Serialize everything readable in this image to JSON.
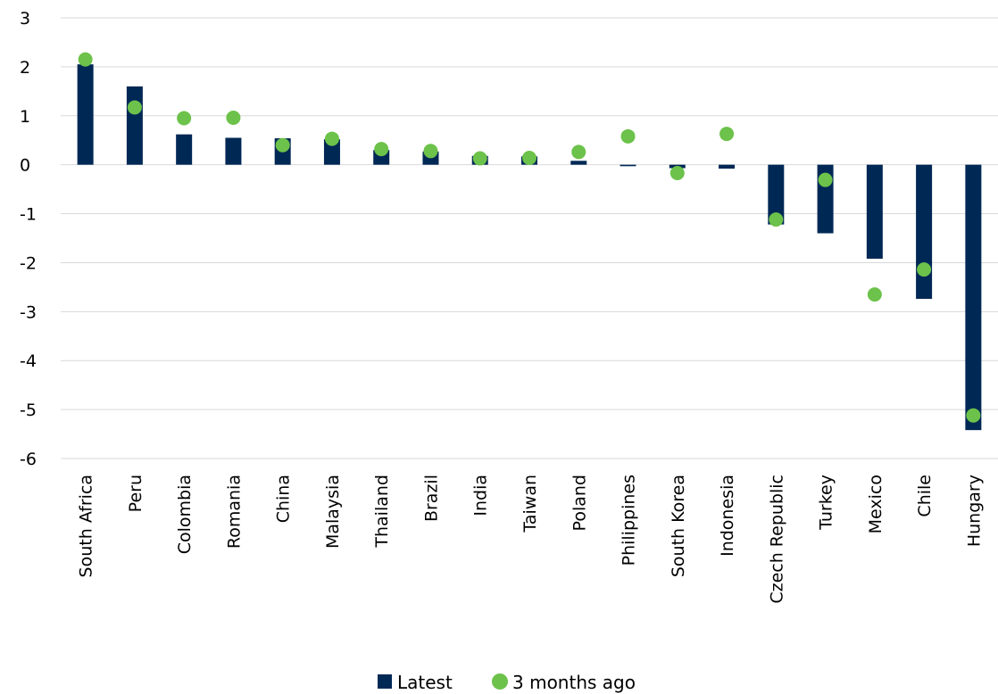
{
  "chart_data": {
    "type": "bar",
    "categories": [
      "South Africa",
      "Peru",
      "Colombia",
      "Romania",
      "China",
      "Malaysia",
      "Thailand",
      "Brazil",
      "India",
      "Taiwan",
      "Poland",
      "Philippines",
      "South Korea",
      "Indonesia",
      "Czech Republic",
      "Turkey",
      "Mexico",
      "Chile",
      "Hungary"
    ],
    "series": [
      {
        "name": "Latest",
        "kind": "bar",
        "color": "#002855",
        "values": [
          2.05,
          1.6,
          0.62,
          0.55,
          0.54,
          0.52,
          0.3,
          0.27,
          0.18,
          0.17,
          0.08,
          -0.03,
          -0.07,
          -0.08,
          -1.22,
          -1.4,
          -1.92,
          -2.74,
          -5.42
        ]
      },
      {
        "name": "3 months ago",
        "kind": "dot",
        "color": "#6cc24a",
        "values": [
          2.15,
          1.17,
          0.95,
          0.96,
          0.4,
          0.53,
          0.32,
          0.28,
          0.13,
          0.14,
          0.26,
          0.58,
          -0.17,
          0.63,
          -1.12,
          -0.31,
          -2.65,
          -2.14,
          -5.12
        ]
      }
    ],
    "ylim": [
      -6,
      3
    ],
    "yticks": [
      3,
      2,
      1,
      0,
      -1,
      -2,
      -3,
      -4,
      -5,
      -6
    ],
    "grid": true,
    "legend_position": "bottom"
  }
}
